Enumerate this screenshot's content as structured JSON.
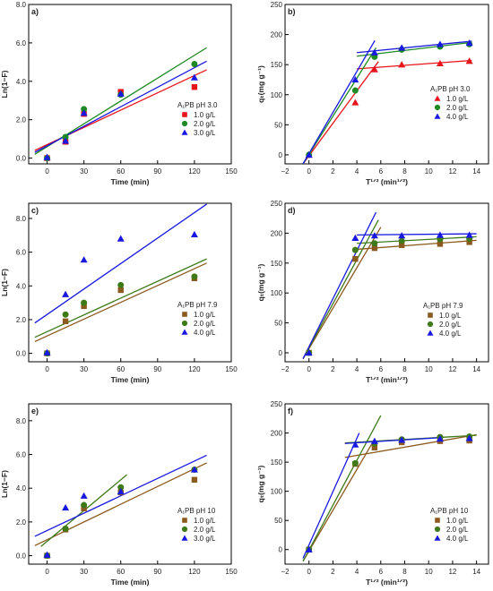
{
  "chart_data": [
    {
      "id": "a",
      "panel_label": "a)",
      "type": "scatter",
      "xlabel": "Time (min)",
      "ylabel": "Ln(1−F)",
      "xlim": [
        -15,
        150
      ],
      "ylim": [
        -0.3,
        8.0
      ],
      "xticks": [
        0,
        30,
        60,
        90,
        120,
        150
      ],
      "yticks": [
        0.0,
        2.0,
        4.0,
        6.0,
        8.0
      ],
      "xtick_labels": [
        "0",
        "30",
        "60",
        "90",
        "120",
        "150"
      ],
      "ytick_labels": [
        "0.0",
        "2.0",
        "4.0",
        "6.0",
        "8.0"
      ],
      "legend_title": "A₁PB pH 3.0",
      "legend_position": "right",
      "series": [
        {
          "name": "1.0 g/L",
          "marker": "square",
          "color": "#e8141b",
          "line_color": "#e8141b",
          "points": [
            [
              0,
              0.0
            ],
            [
              15,
              0.85
            ],
            [
              30,
              2.3
            ],
            [
              60,
              3.45
            ],
            [
              120,
              3.7
            ]
          ],
          "fit": [
            [
              -10,
              0.4
            ],
            [
              130,
              4.6
            ]
          ]
        },
        {
          "name": "2.0 g/L",
          "marker": "circle",
          "color": "#1e8a24",
          "line_color": "#1e8a24",
          "points": [
            [
              0,
              0.0
            ],
            [
              15,
              1.1
            ],
            [
              30,
              2.55
            ],
            [
              60,
              3.3
            ],
            [
              120,
              4.9
            ]
          ],
          "fit": [
            [
              -10,
              0.2
            ],
            [
              130,
              5.75
            ]
          ]
        },
        {
          "name": "3.0 g/L",
          "marker": "triangle",
          "color": "#1818e0",
          "line_color": "#1818e0",
          "points": [
            [
              0,
              0.05
            ],
            [
              15,
              0.9
            ],
            [
              30,
              2.35
            ],
            [
              60,
              3.35
            ],
            [
              120,
              4.2
            ]
          ],
          "fit": [
            [
              -10,
              0.3
            ],
            [
              130,
              5.05
            ]
          ]
        }
      ]
    },
    {
      "id": "b",
      "panel_label": "b)",
      "type": "scatter",
      "xlabel": "T¹ᐟ² (min¹ᐟ²)",
      "ylabel": "qₜ(mg g⁻¹)",
      "xlim": [
        -2,
        15
      ],
      "ylim": [
        -15,
        250
      ],
      "xticks": [
        -2,
        0,
        2,
        4,
        6,
        8,
        10,
        12,
        14
      ],
      "yticks": [
        0,
        50,
        100,
        150,
        200,
        250
      ],
      "xtick_labels": [
        "−2",
        "0",
        "2",
        "4",
        "6",
        "8",
        "10",
        "12",
        "14"
      ],
      "ytick_labels": [
        "0",
        "50",
        "100",
        "150",
        "200",
        "250"
      ],
      "legend_title": "A₁PB pH 3.0",
      "legend_position": "right",
      "series": [
        {
          "name": "1.0 g/L",
          "marker": "triangle",
          "color": "#e8141b",
          "line_color": "#e8141b",
          "points": [
            [
              0,
              0
            ],
            [
              3.87,
              87
            ],
            [
              5.48,
              142
            ],
            [
              7.75,
              150
            ],
            [
              10.95,
              152
            ],
            [
              13.4,
              156
            ]
          ],
          "fit_segments": [
            [
              [
                -0.5,
                -15
              ],
              [
                5.8,
                155
              ]
            ],
            [
              [
                4,
                143
              ],
              [
                13.6,
                157
              ]
            ]
          ]
        },
        {
          "name": "2.0 g/L",
          "marker": "circle",
          "color": "#1e8a24",
          "line_color": "#1e8a24",
          "points": [
            [
              0,
              0
            ],
            [
              3.87,
              107
            ],
            [
              5.48,
              163
            ],
            [
              7.75,
              175
            ],
            [
              10.95,
              180
            ],
            [
              13.4,
              184
            ]
          ],
          "fit_segments": [
            [
              [
                -0.5,
                -15
              ],
              [
                5.6,
                178
              ]
            ],
            [
              [
                4,
                164
              ],
              [
                13.6,
                187
              ]
            ]
          ]
        },
        {
          "name": "4.0 g/L",
          "marker": "triangle",
          "color": "#1818e0",
          "line_color": "#1818e0",
          "points": [
            [
              0,
              0
            ],
            [
              3.87,
              125
            ],
            [
              5.48,
              170
            ],
            [
              7.75,
              178
            ],
            [
              10.95,
              184
            ],
            [
              13.4,
              186
            ]
          ],
          "fit_segments": [
            [
              [
                -0.5,
                -15
              ],
              [
                5.5,
                190
              ]
            ],
            [
              [
                4,
                170
              ],
              [
                13.6,
                189
              ]
            ]
          ]
        }
      ]
    },
    {
      "id": "c",
      "panel_label": "c)",
      "type": "scatter",
      "xlabel": "Time (min)",
      "ylabel": "Ln(1−F)",
      "xlim": [
        -15,
        150
      ],
      "ylim": [
        -0.5,
        8.9
      ],
      "xticks": [
        0,
        30,
        60,
        90,
        120,
        150
      ],
      "yticks": [
        0.0,
        2.0,
        4.0,
        6.0,
        8.0
      ],
      "xtick_labels": [
        "0",
        "30",
        "60",
        "90",
        "120",
        "150"
      ],
      "ytick_labels": [
        "0.0",
        "2.0",
        "4.0",
        "6.0",
        "8.0"
      ],
      "legend_title": "A₁PB pH 7.9",
      "legend_position": "right",
      "series": [
        {
          "name": "1.0 g/L",
          "marker": "square",
          "color": "#8b5a1e",
          "line_color": "#8b5a1e",
          "points": [
            [
              0,
              0.0
            ],
            [
              15,
              1.9
            ],
            [
              30,
              2.8
            ],
            [
              60,
              3.75
            ],
            [
              120,
              4.45
            ]
          ],
          "fit": [
            [
              -10,
              0.7
            ],
            [
              130,
              5.35
            ]
          ]
        },
        {
          "name": "2.0 g/L",
          "marker": "circle",
          "color": "#3f7a1a",
          "line_color": "#3f7a1a",
          "points": [
            [
              0,
              0.0
            ],
            [
              15,
              2.3
            ],
            [
              30,
              3.0
            ],
            [
              60,
              4.05
            ],
            [
              120,
              4.55
            ]
          ],
          "fit": [
            [
              -10,
              0.95
            ],
            [
              130,
              5.6
            ]
          ]
        },
        {
          "name": "4.0 g/L",
          "marker": "triangle",
          "color": "#1818e0",
          "line_color": "#1818e0",
          "points": [
            [
              0,
              0.05
            ],
            [
              15,
              3.5
            ],
            [
              30,
              5.55
            ],
            [
              60,
              6.8
            ],
            [
              120,
              7.05
            ]
          ],
          "fit": [
            [
              -10,
              1.8
            ],
            [
              130,
              8.85
            ]
          ]
        }
      ]
    },
    {
      "id": "d",
      "panel_label": "d)",
      "type": "scatter",
      "xlabel": "T¹ᐟ² (min¹ᐟ²)",
      "ylabel": "qₜ(mg g⁻¹)",
      "xlim": [
        -2,
        15
      ],
      "ylim": [
        -15,
        250
      ],
      "xticks": [
        -2,
        0,
        2,
        4,
        6,
        8,
        10,
        12,
        14
      ],
      "yticks": [
        0,
        50,
        100,
        150,
        200,
        250
      ],
      "xtick_labels": [
        "−2",
        "0",
        "2",
        "4",
        "6",
        "8",
        "10",
        "12",
        "14"
      ],
      "ytick_labels": [
        "0",
        "50",
        "100",
        "150",
        "200",
        "250"
      ],
      "legend_title": "A₁PB pH 7.9",
      "legend_position": "right",
      "series": [
        {
          "name": "1.0 g/L",
          "marker": "square",
          "color": "#8b5a1e",
          "line_color": "#8b5a1e",
          "points": [
            [
              0,
              0
            ],
            [
              3.87,
              157
            ],
            [
              5.48,
              175
            ],
            [
              7.75,
              180
            ],
            [
              10.95,
              182
            ],
            [
              13.4,
              185
            ]
          ],
          "fit_segments": [
            [
              [
                -0.5,
                -10
              ],
              [
                6,
                210
              ]
            ],
            [
              [
                4,
                173
              ],
              [
                14,
                188
              ]
            ]
          ]
        },
        {
          "name": "2.0 g/L",
          "marker": "circle",
          "color": "#3f7a1a",
          "line_color": "#3f7a1a",
          "points": [
            [
              0,
              0
            ],
            [
              3.87,
              172
            ],
            [
              5.48,
              183
            ],
            [
              7.75,
              187
            ],
            [
              10.95,
              190
            ],
            [
              13.4,
              191
            ]
          ],
          "fit_segments": [
            [
              [
                -0.5,
                -10
              ],
              [
                5.8,
                222
              ]
            ],
            [
              [
                4,
                183
              ],
              [
                14,
                194
              ]
            ]
          ]
        },
        {
          "name": "4.0 g/L",
          "marker": "triangle",
          "color": "#1818e0",
          "line_color": "#1818e0",
          "points": [
            [
              0,
              0
            ],
            [
              3.87,
              192
            ],
            [
              5.48,
              196
            ],
            [
              7.75,
              196
            ],
            [
              10.95,
              197
            ],
            [
              13.4,
              197
            ]
          ],
          "fit_segments": [
            [
              [
                -0.5,
                -10
              ],
              [
                5.6,
                235
              ]
            ],
            [
              [
                4,
                197
              ],
              [
                14,
                199
              ]
            ]
          ]
        }
      ]
    },
    {
      "id": "e",
      "panel_label": "e)",
      "type": "scatter",
      "xlabel": "Time (min)",
      "ylabel": "Ln(1−F)",
      "xlim": [
        -15,
        150
      ],
      "ylim": [
        -0.5,
        9.0
      ],
      "xticks": [
        0,
        30,
        60,
        90,
        120,
        150
      ],
      "yticks": [
        0.0,
        2.0,
        4.0,
        6.0,
        8.0
      ],
      "xtick_labels": [
        "0",
        "30",
        "60",
        "90",
        "120",
        "150"
      ],
      "ytick_labels": [
        "0.0",
        "2.0",
        "4.0",
        "6.0",
        "8.0"
      ],
      "legend_title": "A₁PB pH 10",
      "legend_position": "right",
      "series": [
        {
          "name": "1.0 g/L",
          "marker": "square",
          "color": "#8b5a1e",
          "line_color": "#8b5a1e",
          "points": [
            [
              0,
              0.0
            ],
            [
              15,
              1.55
            ],
            [
              30,
              2.8
            ],
            [
              60,
              3.75
            ],
            [
              120,
              4.5
            ]
          ],
          "fit": [
            [
              -10,
              0.6
            ],
            [
              130,
              5.5
            ]
          ]
        },
        {
          "name": "2.0 g/L",
          "marker": "circle",
          "color": "#3f7a1a",
          "line_color": "#3f7a1a",
          "points": [
            [
              0,
              0.0
            ],
            [
              15,
              1.6
            ],
            [
              30,
              3.0
            ],
            [
              60,
              4.05
            ],
            [
              120,
              5.1
            ]
          ],
          "fit": [
            [
              -5,
              0.55
            ],
            [
              65,
              4.8
            ]
          ]
        },
        {
          "name": "3.0 g/L",
          "marker": "triangle",
          "color": "#1818e0",
          "line_color": "#1818e0",
          "points": [
            [
              0,
              0.05
            ],
            [
              15,
              2.85
            ],
            [
              30,
              3.55
            ],
            [
              60,
              3.8
            ],
            [
              120,
              5.1
            ]
          ],
          "fit": [
            [
              -10,
              1.15
            ],
            [
              130,
              5.95
            ]
          ]
        }
      ]
    },
    {
      "id": "f",
      "panel_label": "f)",
      "type": "scatter",
      "xlabel": "T¹ᐟ² (min¹ᐟ²)",
      "ylabel": "qₜ(mg g⁻¹)",
      "xlim": [
        -2,
        15
      ],
      "ylim": [
        -25,
        250
      ],
      "xticks": [
        -2,
        0,
        2,
        4,
        6,
        8,
        10,
        12,
        14
      ],
      "yticks": [
        0,
        50,
        100,
        150,
        200,
        250
      ],
      "xtick_labels": [
        "−2",
        "0",
        "2",
        "4",
        "6",
        "8",
        "10",
        "12",
        "14"
      ],
      "ytick_labels": [
        "0",
        "50",
        "100",
        "150",
        "200",
        "250"
      ],
      "legend_title": "A₁PB pH 10",
      "legend_position": "right",
      "series": [
        {
          "name": "1.0 g/L",
          "marker": "square",
          "color": "#8b5a1e",
          "line_color": "#8b5a1e",
          "points": [
            [
              0,
              0
            ],
            [
              3.87,
              147
            ],
            [
              5.48,
              175
            ],
            [
              7.75,
              184
            ],
            [
              10.95,
              186
            ],
            [
              13.4,
              187
            ]
          ],
          "fit_segments": [
            [
              [
                -0.5,
                -20
              ],
              [
                5.5,
                190
              ]
            ],
            [
              [
                3,
                158
              ],
              [
                14,
                197
              ]
            ]
          ]
        },
        {
          "name": "2.0 g/L",
          "marker": "circle",
          "color": "#3f7a1a",
          "line_color": "#3f7a1a",
          "points": [
            [
              0,
              0
            ],
            [
              3.87,
              148
            ],
            [
              5.48,
              182
            ],
            [
              7.75,
              189
            ],
            [
              10.95,
              193
            ],
            [
              13.4,
              194
            ]
          ],
          "fit_segments": [
            [
              [
                -0.5,
                -20
              ],
              [
                6,
                230
              ]
            ],
            [
              [
                3,
                183
              ],
              [
                14,
                196
              ]
            ]
          ]
        },
        {
          "name": "4.0 g/L",
          "marker": "triangle",
          "color": "#1818e0",
          "line_color": "#1818e0",
          "points": [
            [
              0,
              0
            ],
            [
              3.87,
              180
            ],
            [
              5.48,
              186
            ],
            [
              7.75,
              188
            ],
            [
              10.95,
              190
            ],
            [
              13.4,
              191
            ]
          ],
          "fit_segments": [
            [
              [
                -0.5,
                -15
              ],
              [
                4.2,
                200
              ]
            ],
            [
              [
                3,
                182
              ],
              [
                11,
                192
              ]
            ]
          ]
        }
      ]
    }
  ]
}
